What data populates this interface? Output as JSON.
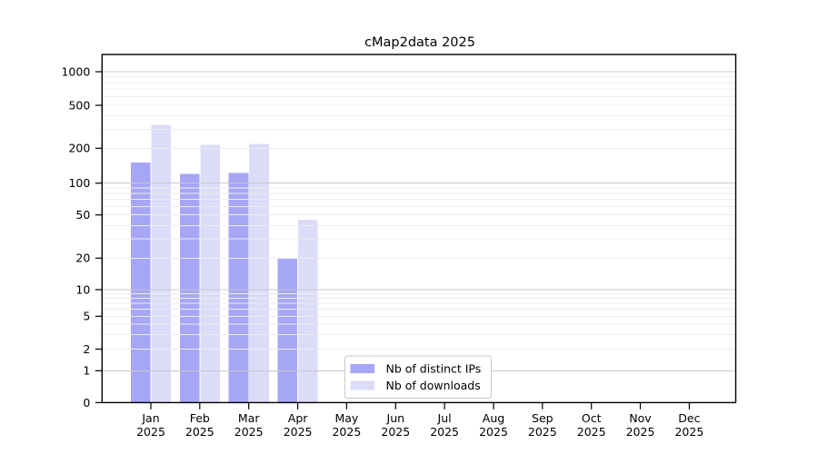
{
  "chart_data": {
    "type": "bar",
    "title": "cMap2data 2025",
    "categories": [
      "Jan",
      "Feb",
      "Mar",
      "Apr",
      "May",
      "Jun",
      "Jul",
      "Aug",
      "Sep",
      "Oct",
      "Nov",
      "Dec"
    ],
    "x_axis": {
      "year_line": "2025"
    },
    "y_axis": {
      "scale": "symlog",
      "ticks": [
        0,
        1,
        2,
        5,
        10,
        20,
        50,
        100,
        200,
        500,
        1000
      ],
      "ylim": [
        0,
        1400
      ]
    },
    "series": [
      {
        "name": "Nb of distinct IPs",
        "color": "#a6a6f6",
        "values": [
          150,
          120,
          122,
          20,
          0,
          0,
          0,
          0,
          0,
          0,
          0,
          0
        ]
      },
      {
        "name": "Nb of downloads",
        "color": "#dcdcf9",
        "values": [
          330,
          215,
          220,
          45,
          0,
          0,
          0,
          0,
          0,
          0,
          0,
          0
        ]
      }
    ],
    "legend": {
      "position": "lower center"
    },
    "grid": {
      "major_color": "#c8c8c8",
      "minor_color": "#ececec",
      "drawn_over_bars": true
    },
    "spine_color": "#000000",
    "background_color": "#ffffff"
  }
}
